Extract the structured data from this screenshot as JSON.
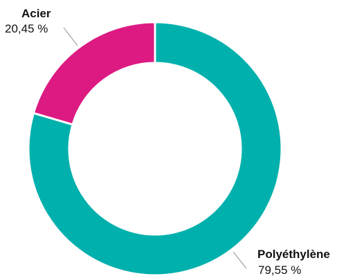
{
  "chart_data": {
    "type": "pie",
    "variant": "donut",
    "slices": [
      {
        "label": "Polyéthylène",
        "value": 79.55,
        "value_text": "79,55 %",
        "color": "#00b0ac"
      },
      {
        "label": "Acier",
        "value": 20.45,
        "value_text": "20,45 %",
        "color": "#dc1a82"
      }
    ],
    "legend": "none"
  }
}
